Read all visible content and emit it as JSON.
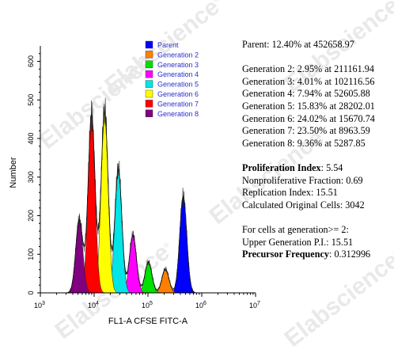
{
  "chart_data": {
    "type": "area",
    "xlabel": "FL1-A CFSE FITC-A",
    "ylabel": "Number",
    "xscale": "log",
    "xlim": [
      1000,
      10000000
    ],
    "ylim": [
      0,
      640
    ],
    "y_ticks": [
      0,
      100,
      200,
      300,
      400,
      500,
      600
    ],
    "x_ticks": [
      {
        "base": "10",
        "exp": "3",
        "value": 1000
      },
      {
        "base": "10",
        "exp": "4",
        "value": 10000
      },
      {
        "base": "10",
        "exp": "5",
        "value": 100000
      },
      {
        "base": "10",
        "exp": "6",
        "value": 1000000
      },
      {
        "base": "10",
        "exp": "7",
        "value": 10000000
      }
    ],
    "legend_position": "top-left",
    "series": [
      {
        "name": "Parent",
        "color": "#0000ff",
        "peak_x": 452658.97,
        "peak_y": 250,
        "width": 0.065
      },
      {
        "name": "Generation 2",
        "color": "#ff7f00",
        "peak_x": 211161.94,
        "peak_y": 62,
        "width": 0.065
      },
      {
        "name": "Generation 3",
        "color": "#00e000",
        "peak_x": 102116.56,
        "peak_y": 80,
        "width": 0.065
      },
      {
        "name": "Generation 4",
        "color": "#ff00ff",
        "peak_x": 52605.88,
        "peak_y": 150,
        "width": 0.065
      },
      {
        "name": "Generation 5",
        "color": "#00e5e5",
        "peak_x": 28202.01,
        "peak_y": 320,
        "width": 0.065
      },
      {
        "name": "Generation 6",
        "color": "#ffff00",
        "peak_x": 15670.74,
        "peak_y": 470,
        "width": 0.065
      },
      {
        "name": "Generation 7",
        "color": "#ff0000",
        "peak_x": 8963.59,
        "peak_y": 460,
        "width": 0.065
      },
      {
        "name": "Generation 8",
        "color": "#800080",
        "peak_x": 5287.85,
        "peak_y": 190,
        "width": 0.065
      }
    ]
  },
  "stats": {
    "parent": "Parent: 12.40% at 452658.97",
    "generations": [
      "Generation 2: 2.95% at 211161.94",
      "Generation 3: 4.01% at 102116.56",
      "Generation 4: 7.94% at 52605.88",
      "Generation 5: 15.83% at 28202.01",
      "Generation 6: 24.02% at 15670.74",
      "Generation 7: 23.50% at 8963.59",
      "Generation 8: 9.36% at 5287.85"
    ],
    "proliferation_label": "Proliferation Index",
    "proliferation_value": ": 5.54",
    "nonproliferative": "Nonproliferative Fraction: 0.69",
    "replication": "Replication Index: 15.51",
    "calculated_cells": "Calculated Original Cells: 3042",
    "cells_generation": "For cells at generation>= 2:",
    "upper_generation": "Upper Generation P.I.: 15.51",
    "precursor_label": "Precursor Frequency",
    "precursor_value": ": 0.312996"
  },
  "watermark": {
    "text": "Elabscience",
    "mark": "®"
  }
}
